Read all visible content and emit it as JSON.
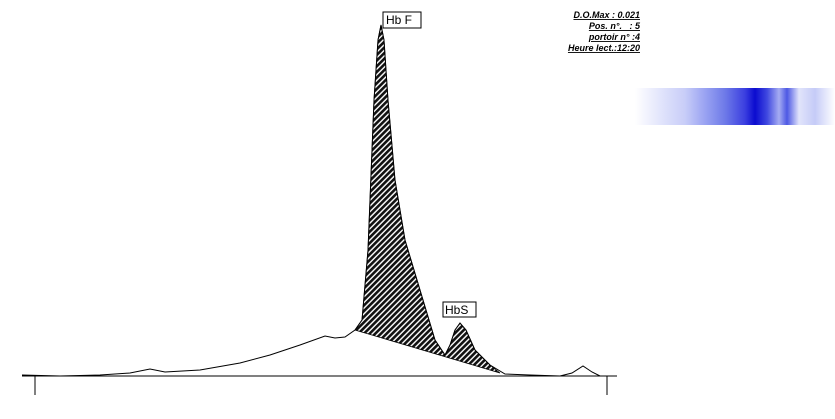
{
  "peaks": [
    "Hb F",
    "HbS"
  ],
  "info": [
    "D.O.Max : 0.021",
    "Pos. n°.   : 5",
    "portoir n° :4",
    "Heure lect.:12:20"
  ]
}
